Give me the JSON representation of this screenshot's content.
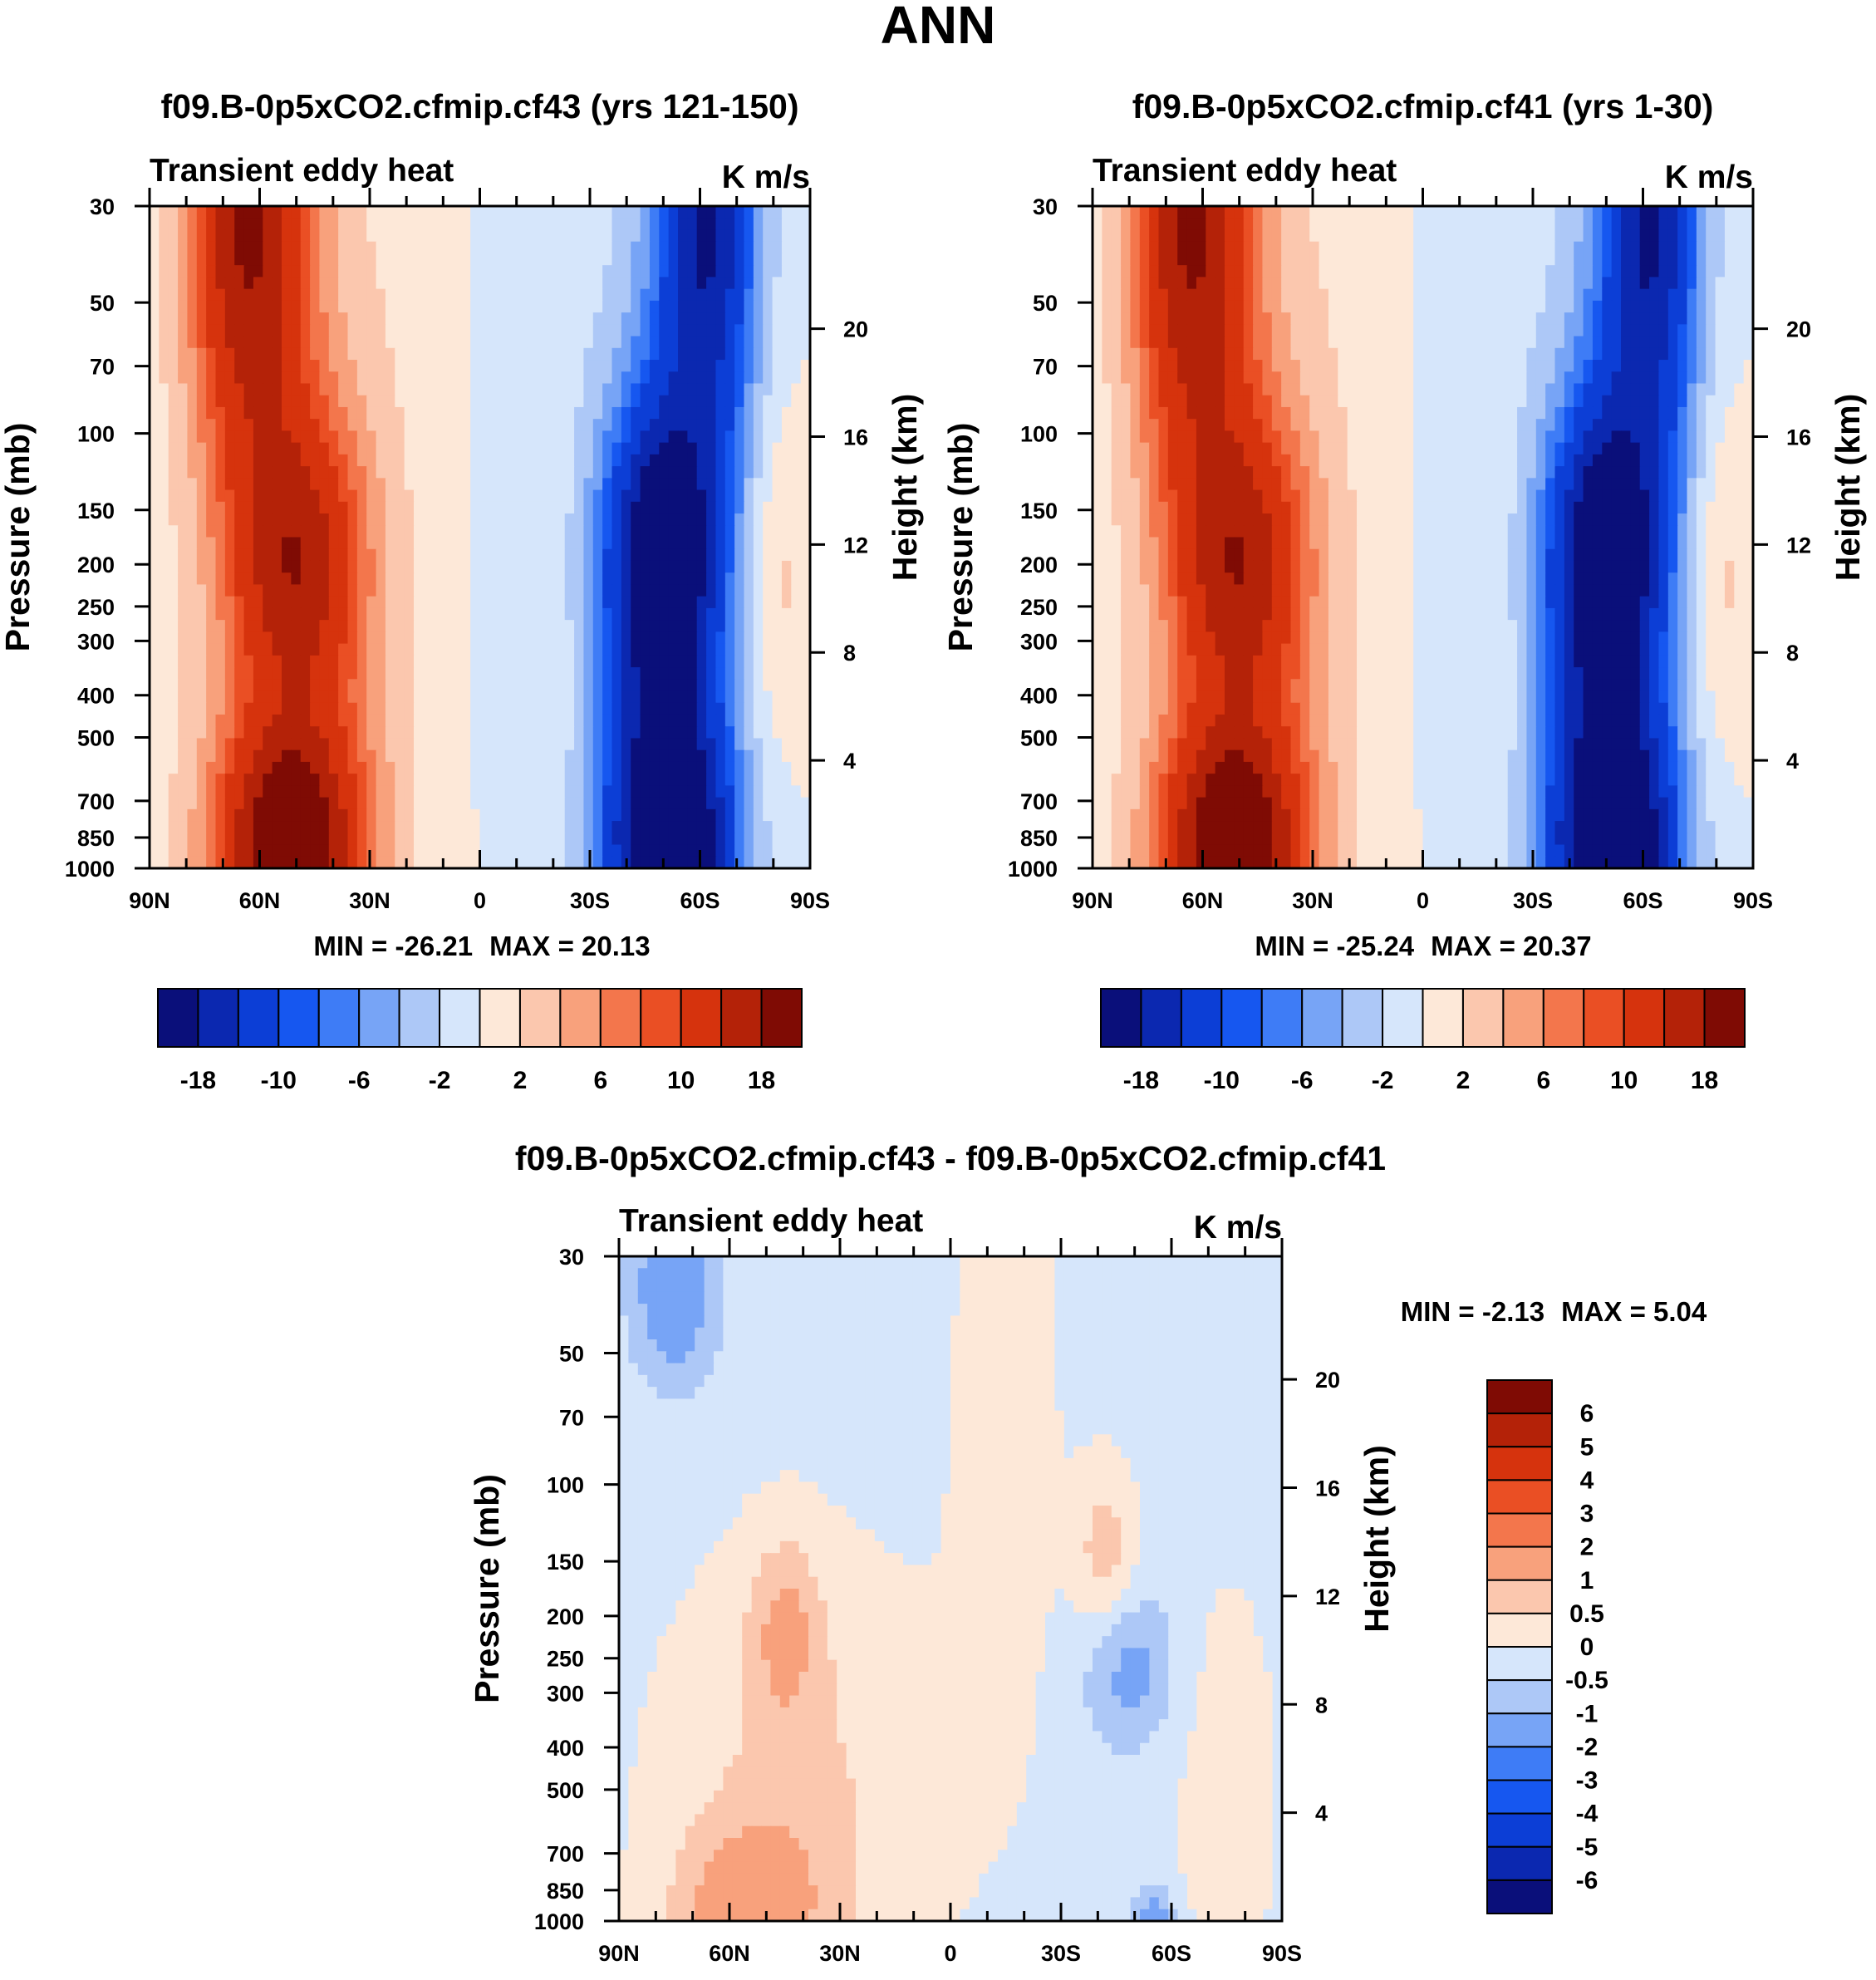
{
  "main_title": "ANN",
  "chart_data": [
    {
      "type": "heatmap",
      "title": "f09.B-0p5xCO2.cfmip.cf43 (yrs 121-150)",
      "variable_label": "Transient eddy heat",
      "units": "K m/s",
      "xlabel": "",
      "ylabel": "Pressure (mb)",
      "ylabel_right": "Height (km)",
      "x_ticks": [
        "90N",
        "60N",
        "30N",
        "0",
        "30S",
        "60S",
        "90S"
      ],
      "x_values": [
        90,
        60,
        30,
        0,
        -30,
        -60,
        -90
      ],
      "y_ticks": [
        "30",
        "50",
        "70",
        "100",
        "150",
        "200",
        "250",
        "300",
        "400",
        "500",
        "700",
        "850",
        "1000"
      ],
      "y_values": [
        30,
        50,
        70,
        100,
        150,
        200,
        250,
        300,
        400,
        500,
        700,
        850,
        1000
      ],
      "ylim": [
        1000,
        30
      ],
      "height_ticks": [
        "20",
        "16",
        "12",
        "8",
        "4"
      ],
      "height_values": [
        20,
        16,
        12,
        8,
        4
      ],
      "min_label": "MIN = -26.21",
      "max_label": "MAX =  20.13",
      "min": -26.21,
      "max": 20.13,
      "colorbar_labels": [
        "-18",
        "-10",
        "-6",
        "-2",
        "2",
        "6",
        "10",
        "18"
      ],
      "colorbar_colors": [
        "#0a0f7a",
        "#0b28b0",
        "#0c3ed6",
        "#1657f0",
        "#3e7cf6",
        "#77a4f6",
        "#adc8f7",
        "#d6e6fb",
        "#fde8d8",
        "#fbc7ae",
        "#f8a17c",
        "#f3764c",
        "#ea4f24",
        "#d6330d",
        "#b42208",
        "#7f0b04"
      ]
    },
    {
      "type": "heatmap",
      "title": "f09.B-0p5xCO2.cfmip.cf41 (yrs 1-30)",
      "variable_label": "Transient eddy heat",
      "units": "K m/s",
      "xlabel": "",
      "ylabel": "Pressure (mb)",
      "ylabel_right": "Height (km)",
      "x_ticks": [
        "90N",
        "60N",
        "30N",
        "0",
        "30S",
        "60S",
        "90S"
      ],
      "x_values": [
        90,
        60,
        30,
        0,
        -30,
        -60,
        -90
      ],
      "y_ticks": [
        "30",
        "50",
        "70",
        "100",
        "150",
        "200",
        "250",
        "300",
        "400",
        "500",
        "700",
        "850",
        "1000"
      ],
      "y_values": [
        30,
        50,
        70,
        100,
        150,
        200,
        250,
        300,
        400,
        500,
        700,
        850,
        1000
      ],
      "ylim": [
        1000,
        30
      ],
      "height_ticks": [
        "20",
        "16",
        "12",
        "8",
        "4"
      ],
      "height_values": [
        20,
        16,
        12,
        8,
        4
      ],
      "min_label": "MIN = -25.24",
      "max_label": "MAX =  20.37",
      "min": -25.24,
      "max": 20.37,
      "colorbar_labels": [
        "-18",
        "-10",
        "-6",
        "-2",
        "2",
        "6",
        "10",
        "18"
      ],
      "colorbar_colors": [
        "#0a0f7a",
        "#0b28b0",
        "#0c3ed6",
        "#1657f0",
        "#3e7cf6",
        "#77a4f6",
        "#adc8f7",
        "#d6e6fb",
        "#fde8d8",
        "#fbc7ae",
        "#f8a17c",
        "#f3764c",
        "#ea4f24",
        "#d6330d",
        "#b42208",
        "#7f0b04"
      ]
    },
    {
      "type": "heatmap",
      "title": "f09.B-0p5xCO2.cfmip.cf43 - f09.B-0p5xCO2.cfmip.cf41",
      "variable_label": "Transient eddy heat",
      "units": "K m/s",
      "xlabel": "",
      "ylabel": "Pressure (mb)",
      "ylabel_right": "Height (km)",
      "x_ticks": [
        "90N",
        "60N",
        "30N",
        "0",
        "30S",
        "60S",
        "90S"
      ],
      "x_values": [
        90,
        60,
        30,
        0,
        -30,
        -60,
        -90
      ],
      "y_ticks": [
        "30",
        "50",
        "70",
        "100",
        "150",
        "200",
        "250",
        "300",
        "400",
        "500",
        "700",
        "850",
        "1000"
      ],
      "y_values": [
        30,
        50,
        70,
        100,
        150,
        200,
        250,
        300,
        400,
        500,
        700,
        850,
        1000
      ],
      "ylim": [
        1000,
        30
      ],
      "height_ticks": [
        "20",
        "16",
        "12",
        "8",
        "4"
      ],
      "height_values": [
        20,
        16,
        12,
        8,
        4
      ],
      "min_label": "MIN =  -2.13",
      "max_label": "MAX =   5.04",
      "min": -2.13,
      "max": 5.04,
      "colorbar_labels": [
        "6",
        "5",
        "4",
        "3",
        "2",
        "1",
        "0.5",
        "0",
        "-0.5",
        "-1",
        "-2",
        "-3",
        "-4",
        "-5",
        "-6"
      ],
      "colorbar_colors": [
        "#7f0b04",
        "#b42208",
        "#d6330d",
        "#ea4f24",
        "#f3764c",
        "#f8a17c",
        "#fbc7ae",
        "#fde8d8",
        "#d6e6fb",
        "#adc8f7",
        "#77a4f6",
        "#3e7cf6",
        "#1657f0",
        "#0c3ed6",
        "#0b28b0",
        "#0a0f7a"
      ]
    }
  ]
}
